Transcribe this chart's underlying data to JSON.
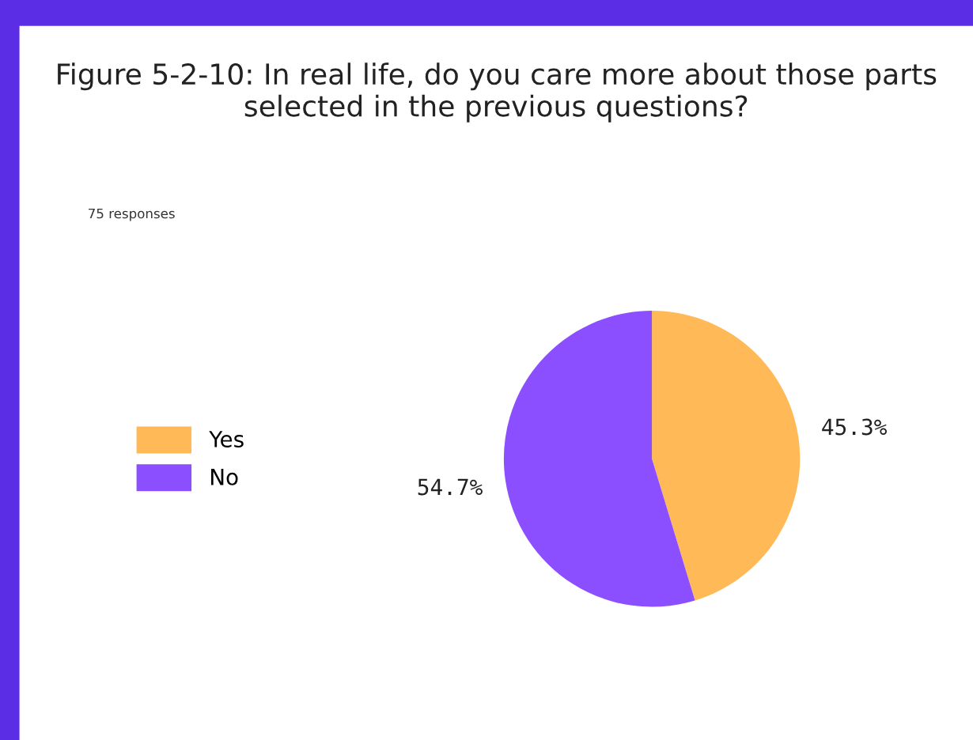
{
  "chart_data": {
    "type": "pie",
    "title": "Figure 5-2-10: In real life, do you care more about those parts selected in the previous questions?",
    "annotations": [
      "75 responses"
    ],
    "categories": [
      "Yes",
      "No"
    ],
    "values": [
      45.3,
      54.7
    ],
    "colors": [
      "#ffb957",
      "#8c4fff"
    ],
    "value_labels": [
      "45.3%",
      "54.7%"
    ],
    "legend": "left"
  }
}
